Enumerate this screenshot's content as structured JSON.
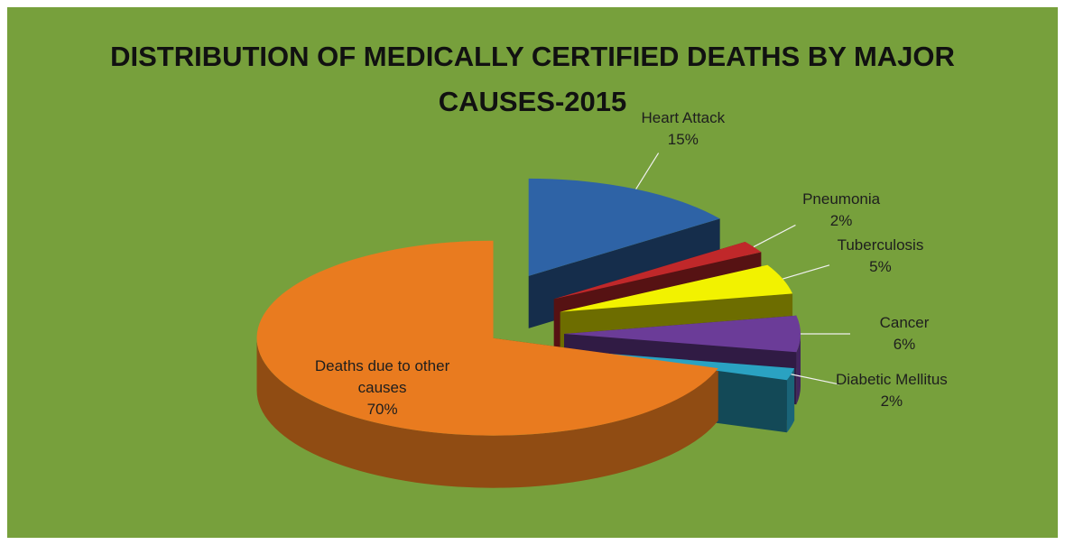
{
  "chart_data": {
    "type": "pie",
    "title": "DISTRIBUTION OF MEDICALLY CERTIFIED DEATHS BY MAJOR CAUSES-2015",
    "categories": [
      "Heart Attack",
      "Pneumonia",
      "Tuberculosis",
      "Cancer",
      "Diabetic Mellitus",
      "Deaths due to other causes"
    ],
    "values": [
      15,
      2,
      5,
      6,
      2,
      70
    ],
    "value_labels": [
      "15%",
      "2%",
      "5%",
      "6%",
      "2%",
      "70%"
    ],
    "colors": [
      "#2e63a6",
      "#c0282a",
      "#f2f200",
      "#6b3c98",
      "#2aa2c2",
      "#e97b1f"
    ]
  }
}
